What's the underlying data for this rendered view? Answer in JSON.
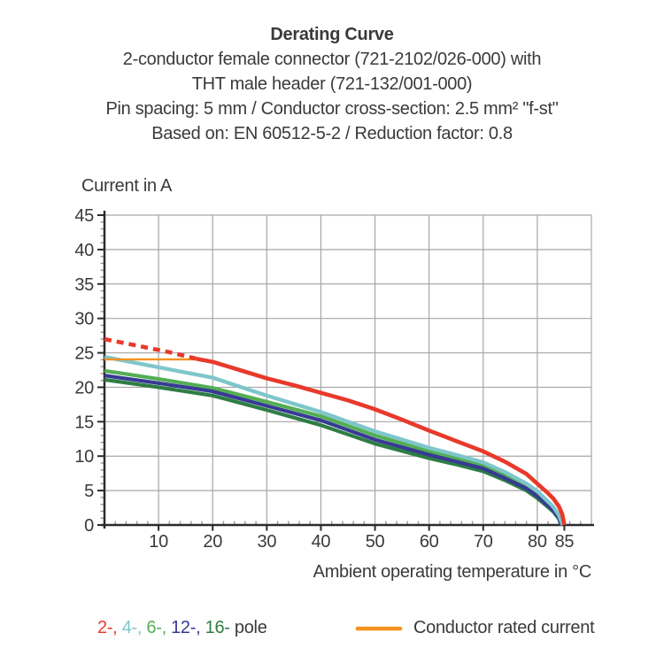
{
  "header": {
    "title": "Derating Curve",
    "lines": [
      "2-conductor female connector (721-2102/026-000) with",
      "THT male header (721-132/001-000)",
      "Pin spacing: 5 mm / Conductor cross-section: 2.5 mm² \"f-st\"",
      "Based on: EN 60512-5-2 / Reduction factor: 0.8"
    ]
  },
  "chart_data": {
    "type": "line",
    "title": "Derating Curve",
    "xlabel": "Ambient operating temperature in °C",
    "ylabel": "Current in A",
    "xlim": [
      0,
      90
    ],
    "ylim": [
      0,
      45
    ],
    "grid": true,
    "x_major_ticks": [
      10,
      20,
      30,
      40,
      50,
      60,
      70,
      80,
      85
    ],
    "x_gridlines": [
      10,
      20,
      30,
      40,
      50,
      60,
      70,
      80,
      90
    ],
    "y_ticks": [
      0,
      5,
      10,
      15,
      20,
      25,
      30,
      35,
      40,
      45
    ],
    "x_minor_step": 2,
    "x_minor_max": 88,
    "y_minor_step": 1,
    "colors": {
      "axis": "#2b2b2b",
      "grid": "#a6a6a6",
      "minor_tick": "#999999",
      "pole2": "#e8392b",
      "pole4": "#7ec6cb",
      "pole6": "#54ae53",
      "pole12": "#373a94",
      "pole16": "#2e7d44",
      "rated": "#f5921e"
    },
    "series": [
      {
        "id": "pole-6",
        "name": "6-pole",
        "color": "#54ae53",
        "width": 4.2,
        "points": [
          [
            0,
            22.4
          ],
          [
            10,
            21.2
          ],
          [
            20,
            19.9
          ],
          [
            30,
            17.9
          ],
          [
            40,
            15.8
          ],
          [
            50,
            13.0
          ],
          [
            60,
            10.7
          ],
          [
            65,
            9.7
          ],
          [
            70,
            8.6
          ],
          [
            74,
            7.2
          ],
          [
            78,
            5.6
          ],
          [
            80,
            4.5
          ],
          [
            82,
            3.1
          ],
          [
            83,
            2.3
          ],
          [
            84,
            1.2
          ],
          [
            84.6,
            0
          ]
        ]
      },
      {
        "id": "pole-16",
        "name": "16-pole",
        "color": "#2e7d44",
        "width": 4.2,
        "points": [
          [
            0,
            21.1
          ],
          [
            10,
            20.0
          ],
          [
            20,
            18.8
          ],
          [
            30,
            16.7
          ],
          [
            40,
            14.5
          ],
          [
            50,
            11.8
          ],
          [
            60,
            9.7
          ],
          [
            65,
            8.8
          ],
          [
            70,
            7.8
          ],
          [
            74,
            6.5
          ],
          [
            78,
            5.0
          ],
          [
            80,
            3.9
          ],
          [
            82,
            2.6
          ],
          [
            83,
            1.9
          ],
          [
            84,
            0.9
          ],
          [
            84.4,
            0
          ]
        ]
      },
      {
        "id": "pole-12",
        "name": "12-pole",
        "color": "#373a94",
        "width": 4.2,
        "points": [
          [
            0,
            21.7
          ],
          [
            10,
            20.6
          ],
          [
            20,
            19.4
          ],
          [
            30,
            17.3
          ],
          [
            40,
            15.2
          ],
          [
            50,
            12.4
          ],
          [
            60,
            10.2
          ],
          [
            65,
            9.2
          ],
          [
            70,
            8.2
          ],
          [
            74,
            6.8
          ],
          [
            78,
            5.3
          ],
          [
            80,
            4.2
          ],
          [
            82,
            2.8
          ],
          [
            83,
            2.1
          ],
          [
            84,
            1.0
          ],
          [
            84.5,
            0
          ]
        ]
      },
      {
        "id": "pole-4",
        "name": "4-pole",
        "color": "#7ec6cb",
        "width": 4.4,
        "points": [
          [
            0,
            24.4
          ],
          [
            10,
            22.9
          ],
          [
            20,
            21.4
          ],
          [
            30,
            18.8
          ],
          [
            40,
            16.4
          ],
          [
            50,
            13.6
          ],
          [
            60,
            11.2
          ],
          [
            65,
            10.2
          ],
          [
            70,
            9.1
          ],
          [
            74,
            7.7
          ],
          [
            78,
            6.0
          ],
          [
            80,
            4.9
          ],
          [
            82,
            3.4
          ],
          [
            83,
            2.6
          ],
          [
            84,
            1.4
          ],
          [
            84.7,
            0
          ]
        ]
      },
      {
        "id": "rated-current",
        "name": "Conductor rated current",
        "color": "#f5921e",
        "width": 2.4,
        "points": [
          [
            0,
            24.05
          ],
          [
            17.5,
            24.05
          ]
        ]
      },
      {
        "id": "pole-2-dashed",
        "name": "2-pole (above conductor rated current)",
        "color": "#e8392b",
        "width": 4.6,
        "dash": "8 6",
        "points": [
          [
            0,
            27.0
          ],
          [
            6,
            26.05
          ],
          [
            12,
            25.1
          ],
          [
            17,
            24.15
          ]
        ]
      },
      {
        "id": "pole-2",
        "name": "2-pole",
        "color": "#e8392b",
        "width": 4.6,
        "points": [
          [
            17,
            24.15
          ],
          [
            20,
            23.7
          ],
          [
            25,
            22.5
          ],
          [
            30,
            21.3
          ],
          [
            35,
            20.3
          ],
          [
            40,
            19.2
          ],
          [
            45,
            18.1
          ],
          [
            50,
            16.8
          ],
          [
            55,
            15.3
          ],
          [
            60,
            13.7
          ],
          [
            65,
            12.2
          ],
          [
            70,
            10.7
          ],
          [
            74,
            9.2
          ],
          [
            78,
            7.4
          ],
          [
            80,
            6.0
          ],
          [
            82,
            4.6
          ],
          [
            83,
            3.8
          ],
          [
            84,
            2.7
          ],
          [
            84.6,
            1.6
          ],
          [
            85,
            0
          ]
        ]
      }
    ]
  },
  "legend": {
    "pole_items": [
      {
        "text": "2-",
        "color": "#e8392b"
      },
      {
        "text": "4-",
        "color": "#7ec6cb"
      },
      {
        "text": "6-",
        "color": "#54ae53"
      },
      {
        "text": "12-",
        "color": "#373a94"
      },
      {
        "text": "16-",
        "color": "#2e7d44"
      }
    ],
    "pole_separator": ", ",
    "pole_suffix": " pole",
    "rated": {
      "label": "Conductor rated current",
      "color": "#f5921e"
    }
  }
}
